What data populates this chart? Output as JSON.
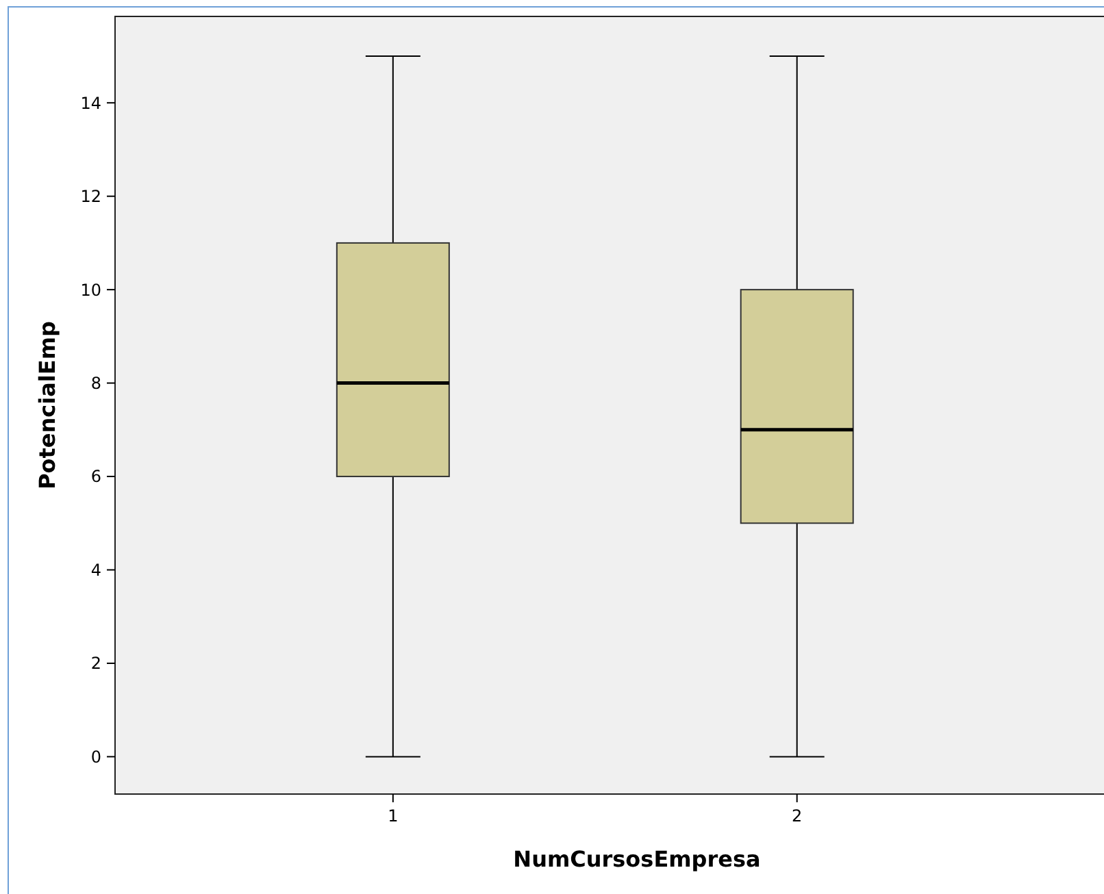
{
  "chart_data": {
    "type": "box",
    "xlabel": "NumCursosEmpresa",
    "ylabel": "PotencialEmp",
    "categories": [
      "1",
      "2"
    ],
    "color": "#d3ce99",
    "ylim": [
      -0.8,
      15.85
    ],
    "yticks": [
      0,
      2,
      4,
      6,
      8,
      10,
      12,
      14
    ],
    "boxes": [
      {
        "low": 0,
        "q1": 6,
        "median": 8,
        "q3": 11,
        "high": 15
      },
      {
        "low": 0,
        "q1": 5,
        "median": 7,
        "q3": 10,
        "high": 15
      }
    ]
  }
}
